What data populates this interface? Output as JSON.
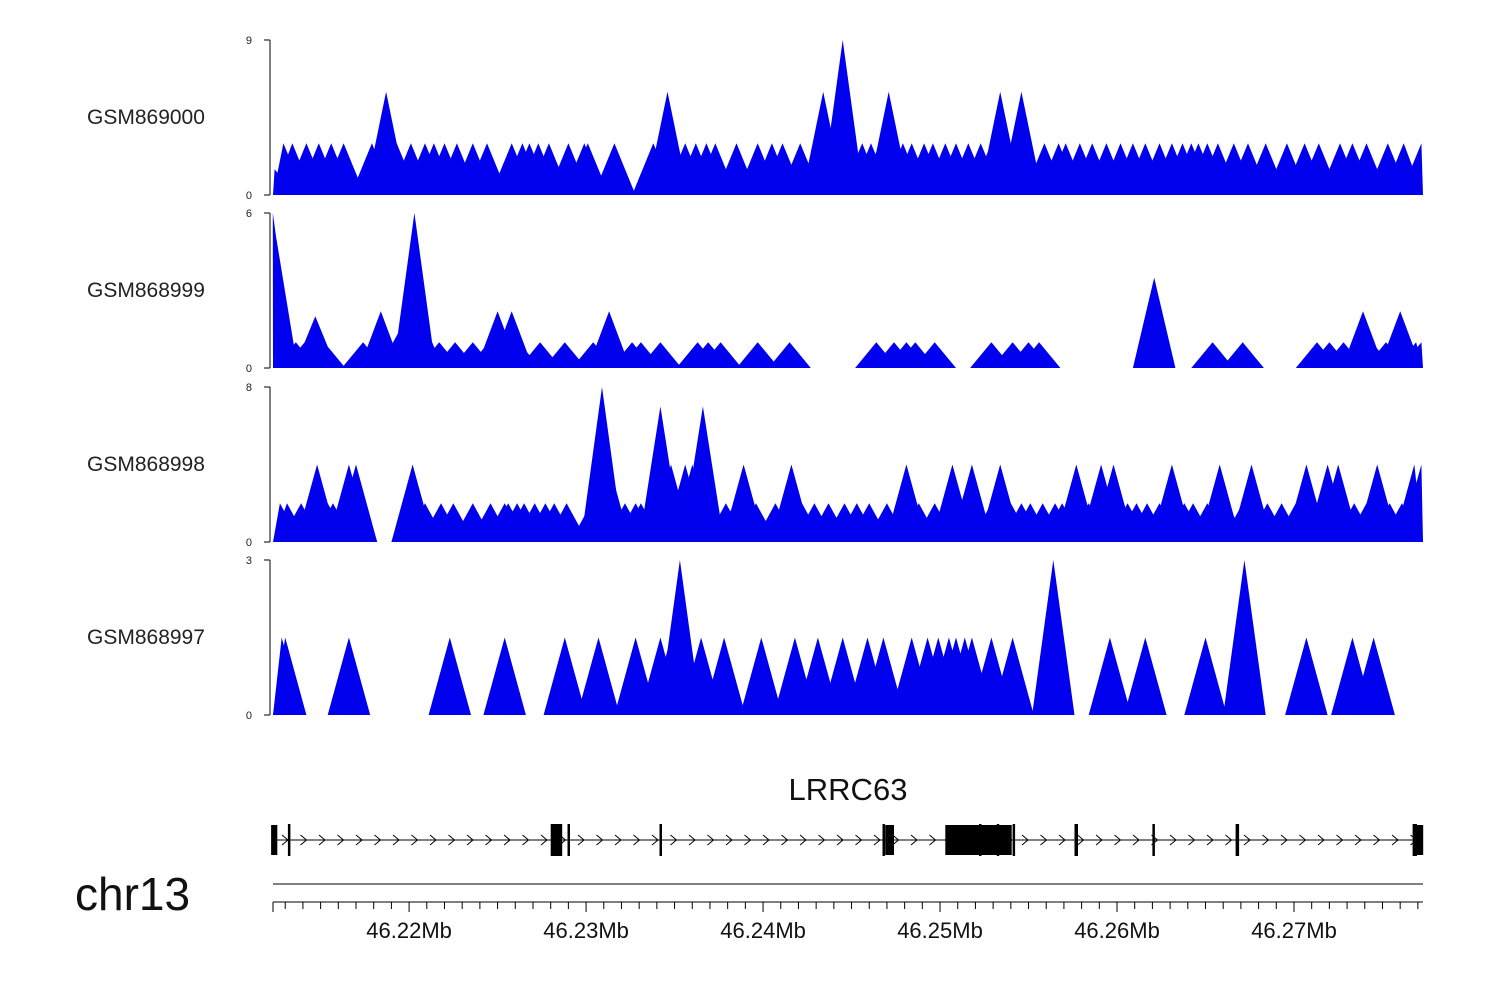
{
  "chart_data": {
    "type": "area",
    "title": "",
    "xlabel": "",
    "ylabel": "",
    "xlim": [
      46.21231,
      46.27729
    ],
    "series_color": "#0000ee",
    "tracks": [
      {
        "name": "GSM869000",
        "ylim": [
          0,
          9
        ],
        "yticks": [
          "0",
          "9"
        ],
        "peaks": [
          [
            46.2124,
            1.5
          ],
          [
            46.2129,
            3
          ],
          [
            46.2134,
            3
          ],
          [
            46.2139,
            1.5
          ],
          [
            46.2142,
            3
          ],
          [
            46.2149,
            3
          ],
          [
            46.2156,
            3
          ],
          [
            46.2163,
            3
          ],
          [
            46.2179,
            3
          ],
          [
            46.2183,
            3
          ],
          [
            46.2187,
            6
          ],
          [
            46.2193,
            3
          ],
          [
            46.2201,
            3
          ],
          [
            46.2209,
            3
          ],
          [
            46.2214,
            3
          ],
          [
            46.222,
            3
          ],
          [
            46.2227,
            3
          ],
          [
            46.2236,
            3
          ],
          [
            46.2244,
            3
          ],
          [
            46.2258,
            3
          ],
          [
            46.2264,
            3
          ],
          [
            46.2268,
            3
          ],
          [
            46.2273,
            3
          ],
          [
            46.2279,
            3
          ],
          [
            46.229,
            3
          ],
          [
            46.2299,
            3
          ],
          [
            46.2301,
            3
          ],
          [
            46.2316,
            3
          ],
          [
            46.2338,
            3
          ],
          [
            46.2344,
            3
          ],
          [
            46.2346,
            6
          ],
          [
            46.2348,
            3
          ],
          [
            46.2356,
            3
          ],
          [
            46.2362,
            3
          ],
          [
            46.2368,
            3
          ],
          [
            46.2373,
            3
          ],
          [
            46.2385,
            3
          ],
          [
            46.2397,
            3
          ],
          [
            46.2405,
            3
          ],
          [
            46.2411,
            3
          ],
          [
            46.2421,
            3
          ],
          [
            46.2431,
            3
          ],
          [
            46.2434,
            6
          ],
          [
            46.2441,
            3
          ],
          [
            46.2445,
            9
          ],
          [
            46.245,
            3
          ],
          [
            46.2456,
            3
          ],
          [
            46.2461,
            3
          ],
          [
            46.2466,
            3
          ],
          [
            46.2471,
            6
          ],
          [
            46.2479,
            3
          ],
          [
            46.2484,
            3
          ],
          [
            46.2491,
            3
          ],
          [
            46.2496,
            3
          ],
          [
            46.2503,
            3
          ],
          [
            46.2509,
            3
          ],
          [
            46.2516,
            3
          ],
          [
            46.2523,
            3
          ],
          [
            46.2529,
            3
          ],
          [
            46.2534,
            6
          ],
          [
            46.2539,
            3
          ],
          [
            46.2544,
            3
          ],
          [
            46.2546,
            6
          ],
          [
            46.2559,
            3
          ],
          [
            46.2567,
            3
          ],
          [
            46.2571,
            3
          ],
          [
            46.2579,
            3
          ],
          [
            46.2586,
            3
          ],
          [
            46.2594,
            3
          ],
          [
            46.2602,
            3
          ],
          [
            46.2609,
            3
          ],
          [
            46.2616,
            3
          ],
          [
            46.2624,
            3
          ],
          [
            46.2631,
            3
          ],
          [
            46.2637,
            3
          ],
          [
            46.2642,
            3
          ],
          [
            46.2646,
            3
          ],
          [
            46.2651,
            3
          ],
          [
            46.2657,
            3
          ],
          [
            46.2666,
            3
          ],
          [
            46.2674,
            3
          ],
          [
            46.2684,
            3
          ],
          [
            46.2696,
            3
          ],
          [
            46.2706,
            3
          ],
          [
            46.2714,
            3
          ],
          [
            46.2726,
            3
          ],
          [
            46.2733,
            3
          ],
          [
            46.2741,
            3
          ],
          [
            46.2753,
            3
          ],
          [
            46.2762,
            3
          ],
          [
            46.2772,
            3
          ]
        ]
      },
      {
        "name": "GSM868999",
        "ylim": [
          0,
          6
        ],
        "yticks": [
          "0",
          "6"
        ],
        "peaks": [
          [
            46.2123,
            6
          ],
          [
            46.2125,
            5
          ],
          [
            46.2129,
            1
          ],
          [
            46.2136,
            1
          ],
          [
            46.2141,
            1
          ],
          [
            46.2145,
            1
          ],
          [
            46.2147,
            2
          ],
          [
            46.2149,
            1
          ],
          [
            46.2152,
            1
          ],
          [
            46.2174,
            1
          ],
          [
            46.2184,
            2.2
          ],
          [
            46.2195,
            1.5
          ],
          [
            46.2198,
            1.5
          ],
          [
            46.2201,
            2.2
          ],
          [
            46.2203,
            6
          ],
          [
            46.2207,
            2
          ],
          [
            46.2217,
            1
          ],
          [
            46.2226,
            1
          ],
          [
            46.2236,
            1
          ],
          [
            46.2245,
            1
          ],
          [
            46.225,
            2.2
          ],
          [
            46.2256,
            1
          ],
          [
            46.2258,
            2.2
          ],
          [
            46.2262,
            1
          ],
          [
            46.2274,
            1
          ],
          [
            46.2288,
            1
          ],
          [
            46.2304,
            1
          ],
          [
            46.2311,
            1
          ],
          [
            46.2313,
            2.2
          ],
          [
            46.2316,
            1
          ],
          [
            46.2326,
            1
          ],
          [
            46.2331,
            1
          ],
          [
            46.2342,
            1
          ],
          [
            46.2363,
            1
          ],
          [
            46.2369,
            1
          ],
          [
            46.2376,
            1
          ],
          [
            46.2397,
            1
          ],
          [
            46.2415,
            1
          ],
          [
            46.2464,
            1
          ],
          [
            46.2474,
            1
          ],
          [
            46.2481,
            1
          ],
          [
            46.2486,
            1
          ],
          [
            46.2497,
            1
          ],
          [
            46.2529,
            1
          ],
          [
            46.2541,
            1
          ],
          [
            46.255,
            1
          ],
          [
            46.2556,
            1
          ],
          [
            46.2621,
            3.5
          ],
          [
            46.2654,
            1
          ],
          [
            46.2671,
            1
          ],
          [
            46.2713,
            1
          ],
          [
            46.272,
            1
          ],
          [
            46.2728,
            1
          ],
          [
            46.2739,
            2.2
          ],
          [
            46.2744,
            1
          ],
          [
            46.2752,
            1
          ],
          [
            46.276,
            2.2
          ],
          [
            46.2763,
            1
          ],
          [
            46.2769,
            1
          ],
          [
            46.2772,
            1
          ]
        ]
      },
      {
        "name": "GSM868998",
        "ylim": [
          0,
          8
        ],
        "yticks": [
          "0",
          "8"
        ],
        "peaks": [
          [
            46.2127,
            2
          ],
          [
            46.2131,
            2
          ],
          [
            46.2139,
            2
          ],
          [
            46.2143,
            2
          ],
          [
            46.2148,
            4
          ],
          [
            46.2154,
            2
          ],
          [
            46.2157,
            2
          ],
          [
            46.2166,
            4
          ],
          [
            46.217,
            4
          ],
          [
            46.2202,
            4
          ],
          [
            46.2209,
            2
          ],
          [
            46.2218,
            2
          ],
          [
            46.2225,
            2
          ],
          [
            46.2236,
            2
          ],
          [
            46.2246,
            2
          ],
          [
            46.2254,
            2
          ],
          [
            46.2256,
            2
          ],
          [
            46.2261,
            2
          ],
          [
            46.2265,
            2
          ],
          [
            46.2271,
            2
          ],
          [
            46.2277,
            2
          ],
          [
            46.2282,
            2
          ],
          [
            46.2289,
            2
          ],
          [
            46.2303,
            2
          ],
          [
            46.2307,
            4
          ],
          [
            46.2309,
            8
          ],
          [
            46.2313,
            4
          ],
          [
            46.2322,
            2
          ],
          [
            46.2328,
            2
          ],
          [
            46.2331,
            2
          ],
          [
            46.2337,
            2
          ],
          [
            46.2342,
            7
          ],
          [
            46.2348,
            4
          ],
          [
            46.235,
            2
          ],
          [
            46.2356,
            4
          ],
          [
            46.236,
            4
          ],
          [
            46.2366,
            7
          ],
          [
            46.237,
            2
          ],
          [
            46.2379,
            2
          ],
          [
            46.2384,
            2
          ],
          [
            46.2389,
            4
          ],
          [
            46.2396,
            2
          ],
          [
            46.2407,
            2
          ],
          [
            46.2416,
            4
          ],
          [
            46.2422,
            2
          ],
          [
            46.2429,
            2
          ],
          [
            46.2437,
            2
          ],
          [
            46.2446,
            2
          ],
          [
            46.2453,
            2
          ],
          [
            46.246,
            2
          ],
          [
            46.247,
            2
          ],
          [
            46.2478,
            2
          ],
          [
            46.2481,
            4
          ],
          [
            46.2488,
            2
          ],
          [
            46.2497,
            2
          ],
          [
            46.2507,
            4
          ],
          [
            46.2514,
            2
          ],
          [
            46.2518,
            4
          ],
          [
            46.2529,
            2
          ],
          [
            46.2534,
            4
          ],
          [
            46.254,
            2
          ],
          [
            46.2546,
            2
          ],
          [
            46.2551,
            2
          ],
          [
            46.2558,
            2
          ],
          [
            46.2565,
            2
          ],
          [
            46.2569,
            2
          ],
          [
            46.2577,
            4
          ],
          [
            46.2584,
            2
          ],
          [
            46.2591,
            4
          ],
          [
            46.2598,
            4
          ],
          [
            46.2606,
            2
          ],
          [
            46.2611,
            2
          ],
          [
            46.2617,
            2
          ],
          [
            46.2624,
            2
          ],
          [
            46.2631,
            4
          ],
          [
            46.2638,
            2
          ],
          [
            46.2643,
            2
          ],
          [
            46.2651,
            2
          ],
          [
            46.2658,
            4
          ],
          [
            46.2662,
            2
          ],
          [
            46.2671,
            2
          ],
          [
            46.2676,
            4
          ],
          [
            46.2685,
            2
          ],
          [
            46.2693,
            2
          ],
          [
            46.2701,
            2
          ],
          [
            46.2707,
            4
          ],
          [
            46.2713,
            2
          ],
          [
            46.2719,
            4
          ],
          [
            46.2725,
            4
          ],
          [
            46.2734,
            2
          ],
          [
            46.2741,
            2
          ],
          [
            46.2747,
            4
          ],
          [
            46.2754,
            2
          ],
          [
            46.2761,
            2
          ],
          [
            46.2768,
            4
          ],
          [
            46.2772,
            4
          ]
        ]
      },
      {
        "name": "GSM868997",
        "ylim": [
          0,
          3
        ],
        "yticks": [
          "0",
          "3"
        ],
        "peaks": [
          [
            46.2128,
            1.5
          ],
          [
            46.213,
            1.5
          ],
          [
            46.2166,
            1.5
          ],
          [
            46.2223,
            1.5
          ],
          [
            46.2254,
            1.5
          ],
          [
            46.2288,
            1.5
          ],
          [
            46.2307,
            1.5
          ],
          [
            46.2328,
            1.5
          ],
          [
            46.2342,
            1.5
          ],
          [
            46.2348,
            1.5
          ],
          [
            46.2353,
            3
          ],
          [
            46.2356,
            1.5
          ],
          [
            46.2365,
            1.5
          ],
          [
            46.2378,
            1.5
          ],
          [
            46.2399,
            1.5
          ],
          [
            46.2418,
            1.5
          ],
          [
            46.2431,
            1.5
          ],
          [
            46.2445,
            1.5
          ],
          [
            46.2459,
            1.5
          ],
          [
            46.2468,
            1.5
          ],
          [
            46.2484,
            1.5
          ],
          [
            46.2493,
            1.5
          ],
          [
            46.2499,
            1.5
          ],
          [
            46.2505,
            1.5
          ],
          [
            46.2509,
            1.5
          ],
          [
            46.2514,
            1.5
          ],
          [
            46.2518,
            1.5
          ],
          [
            46.2529,
            1.5
          ],
          [
            46.2541,
            1.5
          ],
          [
            46.2564,
            3
          ],
          [
            46.2596,
            1.5
          ],
          [
            46.2616,
            1.5
          ],
          [
            46.265,
            1.5
          ],
          [
            46.2672,
            3
          ],
          [
            46.2707,
            1.5
          ],
          [
            46.2733,
            1.5
          ],
          [
            46.2745,
            1.5
          ]
        ]
      }
    ],
    "gene": {
      "name": "LRRC63",
      "strand": "+",
      "exons": [
        [
          46.2122,
          46.21255,
          "half"
        ],
        [
          46.21315,
          46.21325,
          "full"
        ],
        [
          46.228,
          46.22865,
          "full"
        ],
        [
          46.22895,
          46.22905,
          "full"
        ],
        [
          46.23415,
          46.23425,
          "full"
        ],
        [
          46.24675,
          46.24685,
          "full"
        ],
        [
          46.2469,
          46.2474,
          "half"
        ],
        [
          46.2503,
          46.25405,
          "half"
        ],
        [
          46.2522,
          46.2523,
          "full"
        ],
        [
          46.2532,
          46.2533,
          "full"
        ],
        [
          46.2541,
          46.2542,
          "full"
        ],
        [
          46.2576,
          46.2578,
          "full"
        ],
        [
          46.262,
          46.2621,
          "full"
        ],
        [
          46.2667,
          46.2669,
          "full"
        ],
        [
          46.2767,
          46.27695,
          "full"
        ],
        [
          46.2769,
          46.2773,
          "half"
        ]
      ]
    },
    "chromosome": "chr13",
    "x_ticks": [
      {
        "value": 46.22,
        "label": "46.22Mb"
      },
      {
        "value": 46.23,
        "label": "46.23Mb"
      },
      {
        "value": 46.24,
        "label": "46.24Mb"
      },
      {
        "value": 46.25,
        "label": "46.25Mb"
      },
      {
        "value": 46.26,
        "label": "46.26Mb"
      },
      {
        "value": 46.27,
        "label": "46.27Mb"
      }
    ],
    "x_minor_tick_step": 0.001
  }
}
